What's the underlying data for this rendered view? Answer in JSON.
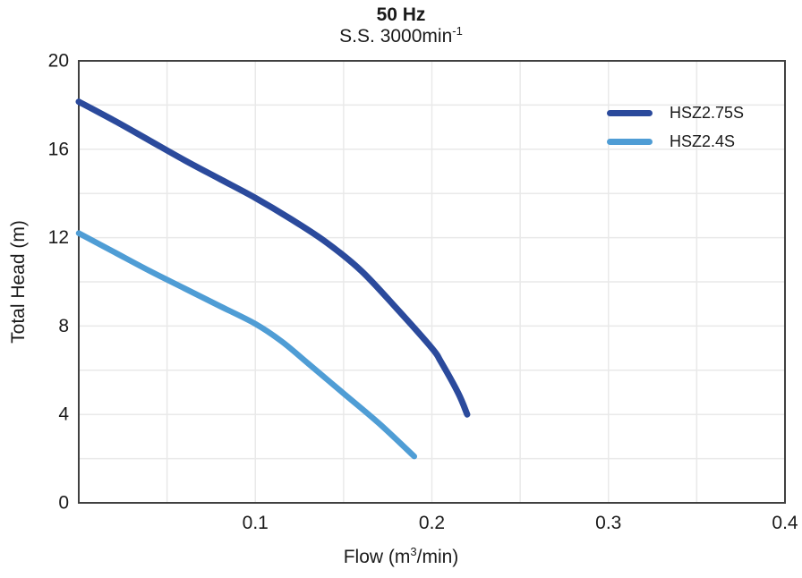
{
  "labels": {
    "title": "50 Hz",
    "subtitle_base": "S.S. 3000min",
    "subtitle_sup": "-1",
    "ylabel": "Total Head (m)",
    "xlabel_pre": "Flow (m",
    "xlabel_sup": "3",
    "xlabel_post": "/min)"
  },
  "chart_data": {
    "type": "line",
    "title": "50 Hz",
    "subtitle": "S.S. 3000min⁻¹",
    "xlabel": "Flow (m³/min)",
    "ylabel": "Total Head (m)",
    "xlim": [
      0,
      0.4
    ],
    "ylim": [
      0,
      20
    ],
    "x_major_ticks": [
      0.1,
      0.2,
      0.3,
      0.4
    ],
    "y_major_ticks": [
      0,
      4,
      8,
      12,
      16,
      20
    ],
    "x_grid_interval": 0.05,
    "y_grid_interval": 2,
    "grid": true,
    "legend_position": "top-right",
    "series": [
      {
        "name": "HSZ2.75S",
        "color": "#2b4a9c",
        "line_width": 7,
        "points": [
          [
            0,
            18.15
          ],
          [
            0.02,
            17.3
          ],
          [
            0.04,
            16.4
          ],
          [
            0.06,
            15.5
          ],
          [
            0.08,
            14.65
          ],
          [
            0.1,
            13.8
          ],
          [
            0.12,
            12.85
          ],
          [
            0.14,
            11.8
          ],
          [
            0.16,
            10.5
          ],
          [
            0.18,
            8.8
          ],
          [
            0.2,
            7.0
          ],
          [
            0.205,
            6.4
          ],
          [
            0.215,
            4.95
          ],
          [
            0.22,
            4.0
          ]
        ]
      },
      {
        "name": "HSZ2.4S",
        "color": "#4f9dd5",
        "line_width": 6.5,
        "points": [
          [
            0,
            12.2
          ],
          [
            0.02,
            11.35
          ],
          [
            0.04,
            10.5
          ],
          [
            0.06,
            9.7
          ],
          [
            0.08,
            8.9
          ],
          [
            0.1,
            8.1
          ],
          [
            0.115,
            7.3
          ],
          [
            0.13,
            6.3
          ],
          [
            0.15,
            4.95
          ],
          [
            0.17,
            3.6
          ],
          [
            0.19,
            2.1
          ]
        ]
      }
    ]
  },
  "colors": {
    "grid": "#e9e9e9",
    "axis_border": "#404040",
    "text": "#1a1a1a",
    "background": "#ffffff"
  }
}
